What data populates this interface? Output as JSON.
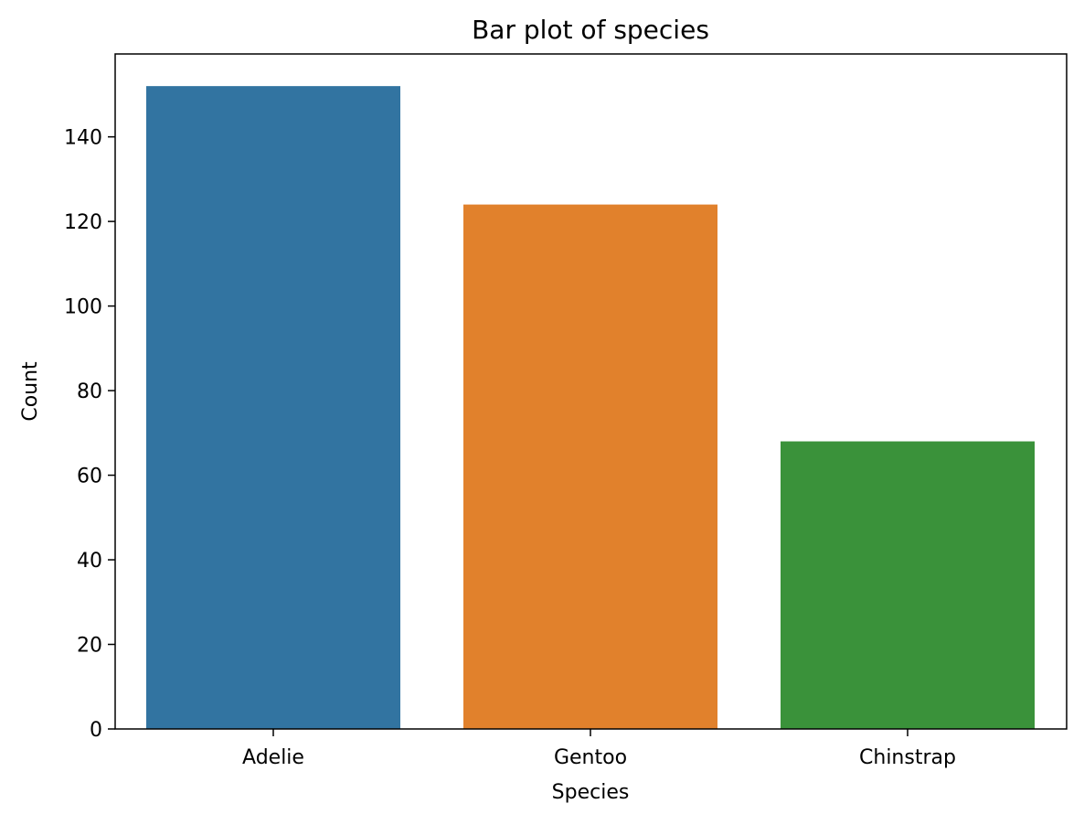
{
  "chart_data": {
    "type": "bar",
    "title": "Bar plot of species",
    "xlabel": "Species",
    "ylabel": "Count",
    "categories": [
      "Adelie",
      "Gentoo",
      "Chinstrap"
    ],
    "values": [
      152,
      124,
      68
    ],
    "colors": [
      "#3274a1",
      "#e1812c",
      "#3a923a"
    ],
    "ylim": [
      0,
      159.6
    ],
    "yticks": [
      0,
      20,
      40,
      60,
      80,
      100,
      120,
      140
    ],
    "grid": false,
    "legend": "none"
  }
}
